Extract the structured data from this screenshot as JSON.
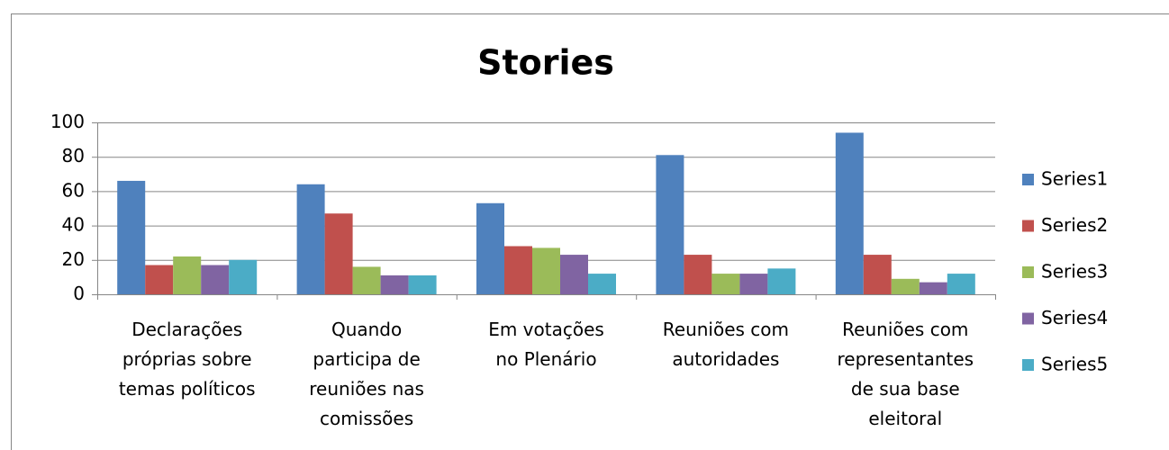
{
  "chart_data": {
    "type": "bar",
    "title": "Stories",
    "categories": [
      "Declarações\npróprias sobre\ntemas políticos",
      "Quando\nparticipa de\nreuniões nas\ncomissões",
      "Em votações\nno Plenário",
      "Reuniões com\nautoridades",
      "Reuniões com\nrepresentantes\nde sua base\neleitoral"
    ],
    "series": [
      {
        "name": "Series1",
        "color": "#4f81bd",
        "values": [
          66,
          64,
          53,
          81,
          94
        ]
      },
      {
        "name": "Series2",
        "color": "#c0504d",
        "values": [
          17,
          47,
          28,
          23,
          23
        ]
      },
      {
        "name": "Series3",
        "color": "#9bbb59",
        "values": [
          22,
          16,
          27,
          12,
          9
        ]
      },
      {
        "name": "Series4",
        "color": "#8064a2",
        "values": [
          17,
          11,
          23,
          12,
          7
        ]
      },
      {
        "name": "Series5",
        "color": "#4bacc6",
        "values": [
          20,
          11,
          12,
          15,
          12
        ]
      }
    ],
    "ylim": [
      0,
      100
    ],
    "yticks": [
      0,
      20,
      40,
      60,
      80,
      100
    ],
    "grid": true,
    "legend": "right"
  }
}
